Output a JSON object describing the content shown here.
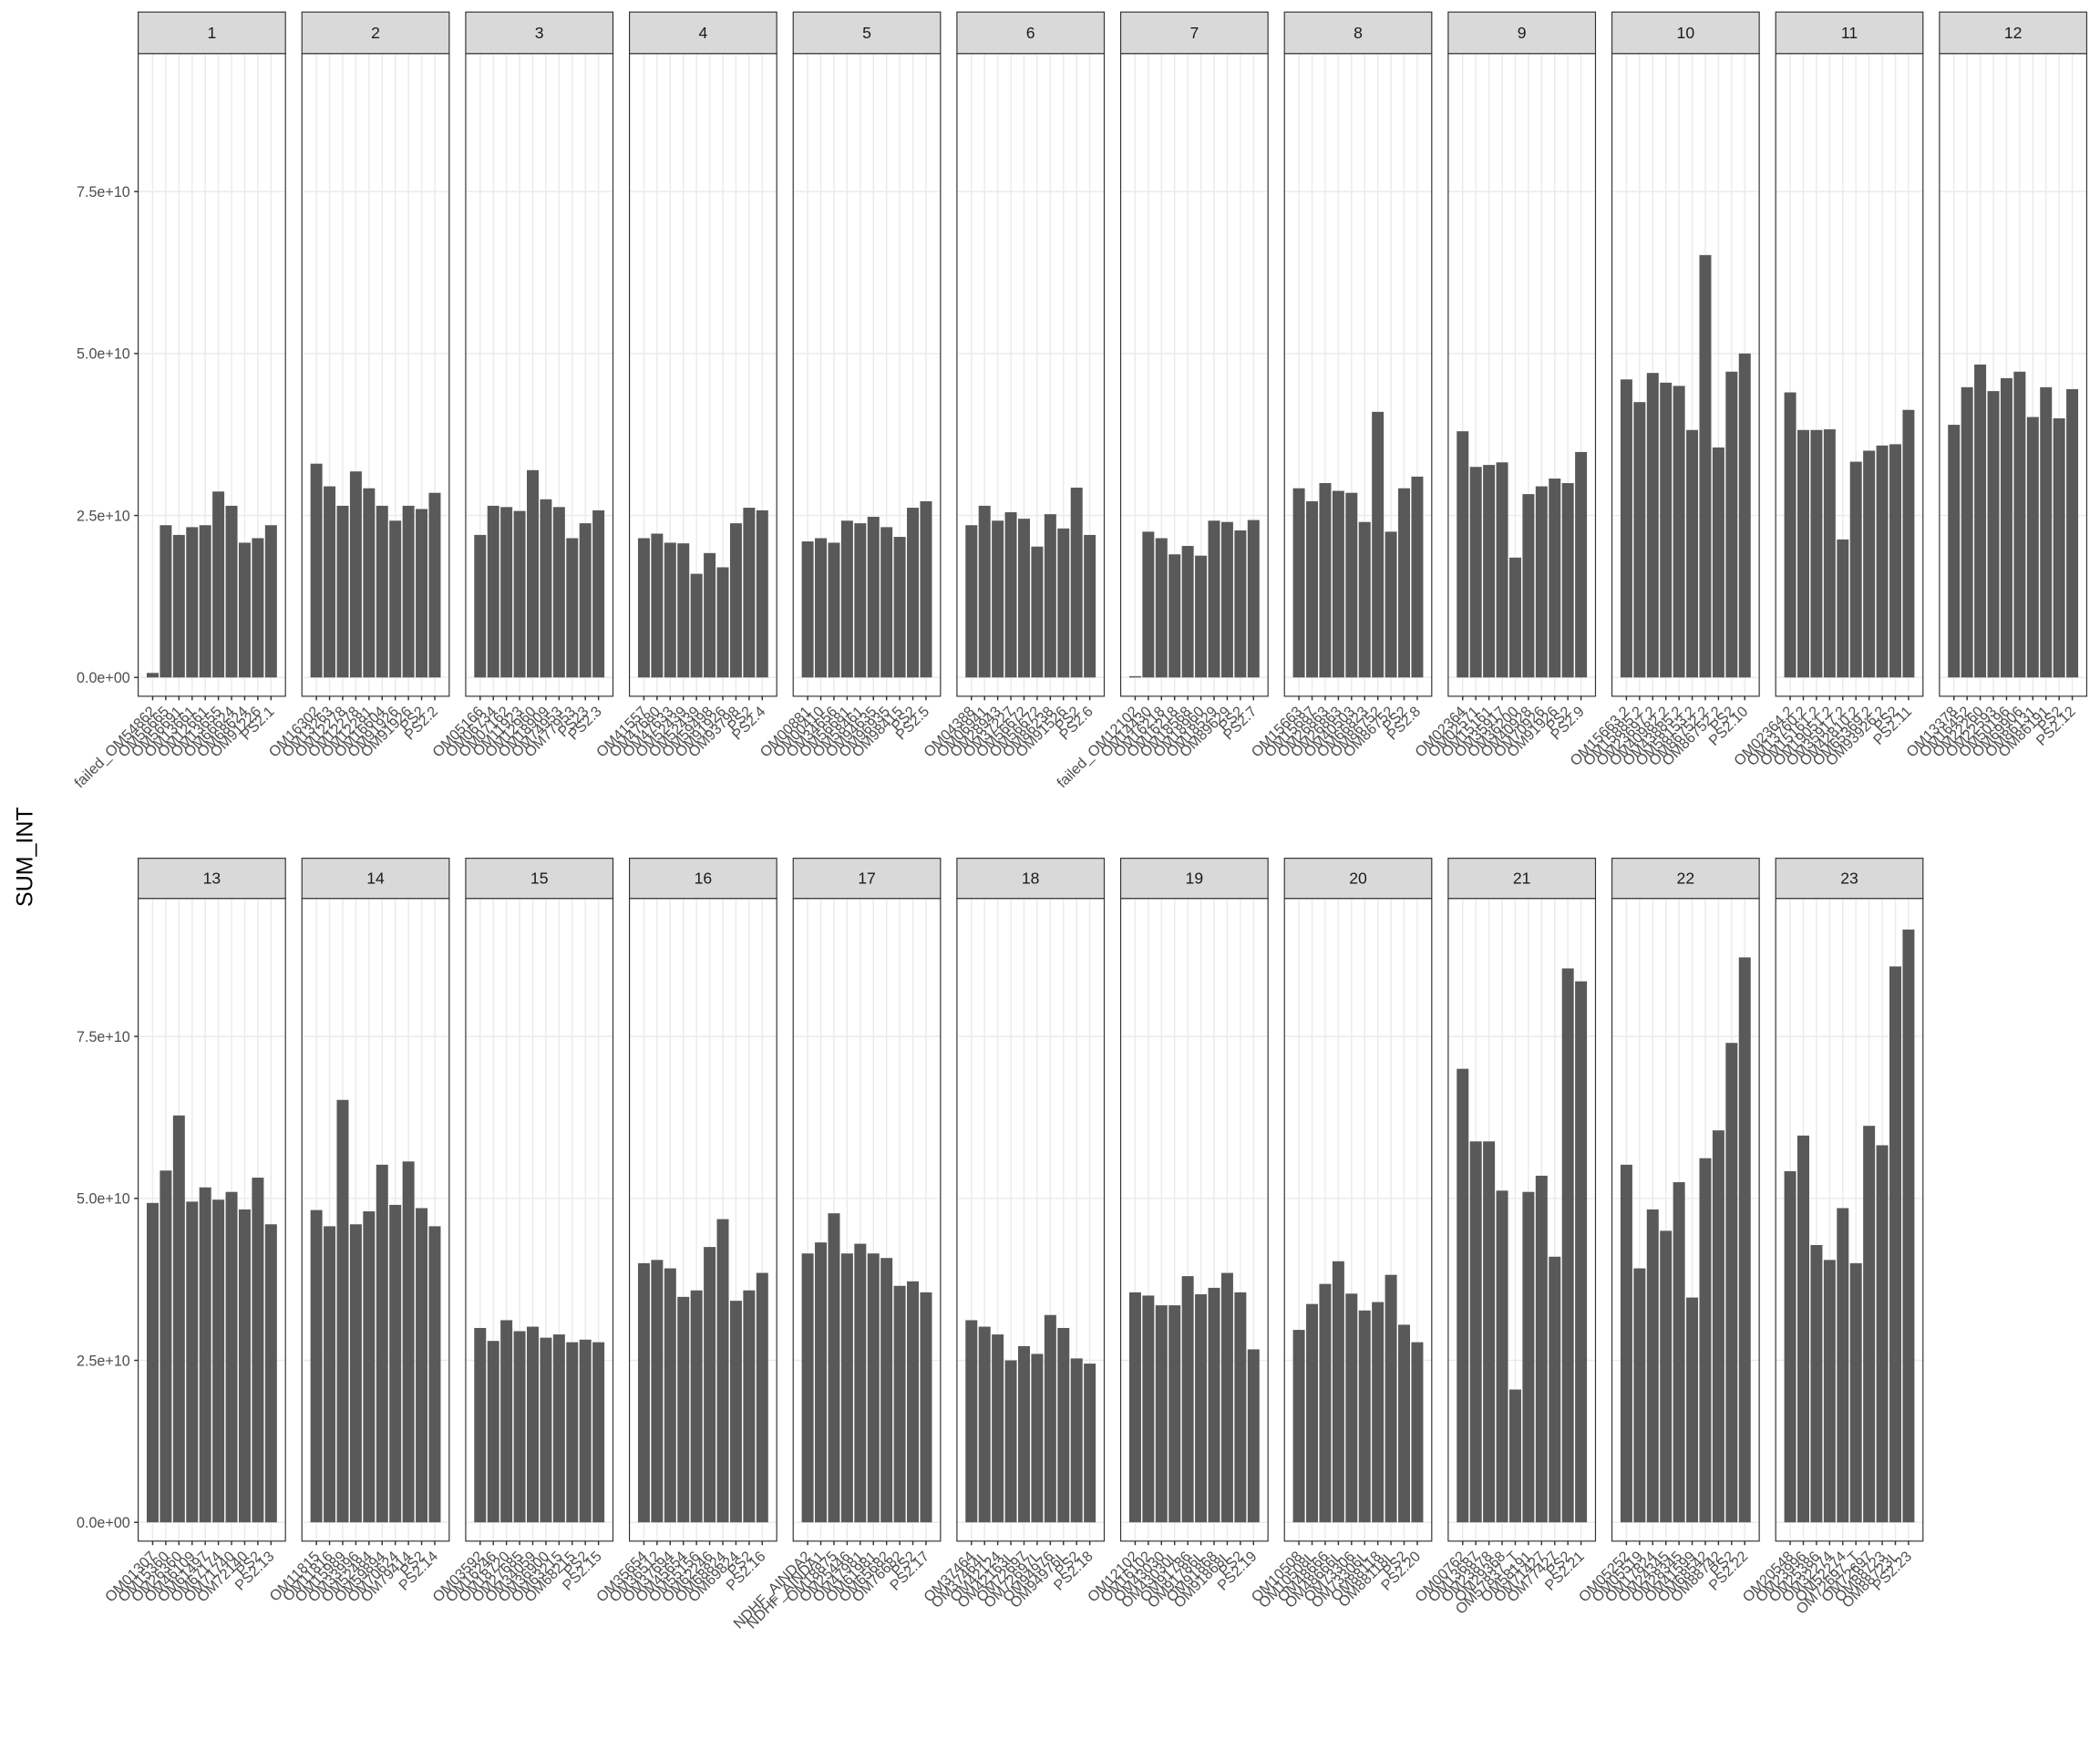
{
  "chart_data": {
    "type": "bar",
    "y_label": "SUM_INT",
    "color": "#595959",
    "grid": true,
    "ylim": [
      -2900000000,
      96300000000
    ],
    "yticks": [
      {
        "value": 0,
        "label": "0.0e+00"
      },
      {
        "value": 25000000000,
        "label": "2.5e+10"
      },
      {
        "value": 50000000000,
        "label": "5.0e+10"
      },
      {
        "value": 75000000000,
        "label": "7.5e+10"
      }
    ],
    "panels": [
      {
        "title": "1",
        "categories": [
          "failed_OM54862",
          "OM56665",
          "OM56691",
          "OM13661",
          "OM12661",
          "OM13655",
          "OM66624",
          "OM68624",
          "OM91226",
          "PS2.1"
        ],
        "values": [
          700000000,
          23500000000,
          22000000000,
          23200000000,
          23500000000,
          28700000000,
          26500000000,
          20800000000,
          21500000000,
          23500000000
        ]
      },
      {
        "title": "2",
        "categories": [
          "OM16302",
          "OM13263",
          "OM12278",
          "OM12278",
          "OM12281",
          "OM16604",
          "OM91926",
          "OM91926",
          "PS2",
          "PS2.2"
        ],
        "values": [
          33000000000,
          29500000000,
          26500000000,
          31800000000,
          29200000000,
          26500000000,
          24200000000,
          26500000000,
          26000000000,
          28500000000
        ]
      },
      {
        "title": "3",
        "categories": [
          "OM05166",
          "OM06734",
          "OM07162",
          "OM11923",
          "OM12960",
          "OM18909",
          "OM74953",
          "OM77953",
          "PS23",
          "PS2.3"
        ],
        "values": [
          22000000000,
          26500000000,
          26300000000,
          25700000000,
          32000000000,
          27500000000,
          26300000000,
          21500000000,
          23800000000,
          25800000000
        ]
      },
      {
        "title": "4",
        "categories": [
          "OM41557",
          "OM47680",
          "OM47633",
          "OM52439",
          "OM52439",
          "OM59498",
          "OM91926",
          "OM93798",
          "PS2",
          "PS2.4"
        ],
        "values": [
          21500000000,
          22200000000,
          20800000000,
          20700000000,
          16000000000,
          19200000000,
          17000000000,
          23800000000,
          26200000000,
          25800000000
        ]
      },
      {
        "title": "5",
        "categories": [
          "OM00881",
          "OM00410",
          "OM34656",
          "OM56681",
          "OM58461",
          "OM94635",
          "OM96935",
          "OM98415",
          "PS2",
          "PS2.5"
        ],
        "values": [
          21000000000,
          21500000000,
          20800000000,
          24200000000,
          23800000000,
          24800000000,
          23200000000,
          21700000000,
          26200000000,
          27200000000
        ]
      },
      {
        "title": "6",
        "categories": [
          "OM04388",
          "OM06941",
          "OM28943",
          "OM37227",
          "OM56672",
          "OM56672",
          "OM86238",
          "OM91526",
          "PS2",
          "PS2.6"
        ],
        "values": [
          23500000000,
          26500000000,
          24200000000,
          25500000000,
          24500000000,
          20200000000,
          25200000000,
          23000000000,
          29300000000,
          22000000000
        ]
      },
      {
        "title": "7",
        "categories": [
          "failed_OM12102",
          "OM14430",
          "OM16218",
          "OM16218",
          "OM18568",
          "OM18960",
          "OM18529",
          "OM89629",
          "PS2",
          "PS2.7"
        ],
        "values": [
          200000000,
          22500000000,
          21500000000,
          19000000000,
          20300000000,
          18800000000,
          24200000000,
          24000000000,
          22700000000,
          24300000000
        ]
      },
      {
        "title": "8",
        "categories": [
          "OM15663",
          "OM15687",
          "OM26863",
          "OM26863",
          "OM40503",
          "OM66823",
          "OM86752",
          "OM86752",
          "PS2",
          "PS2.8"
        ],
        "values": [
          29200000000,
          27200000000,
          30000000000,
          28800000000,
          28500000000,
          24000000000,
          41000000000,
          22500000000,
          29200000000,
          31000000000
        ]
      },
      {
        "title": "9",
        "categories": [
          "OM02364",
          "OM02571",
          "OM15161",
          "OM35917",
          "OM36200",
          "OM40928",
          "OM70926",
          "OM91926",
          "PS2",
          "PS2.9"
        ],
        "values": [
          38000000000,
          32500000000,
          32800000000,
          33200000000,
          18500000000,
          28300000000,
          29500000000,
          30700000000,
          30000000000,
          34800000000
        ]
      },
      {
        "title": "10",
        "categories": [
          "OM15663.2",
          "OM15885.2",
          "OM23697.2",
          "OM40982.2",
          "OM43885.2",
          "OM58153.2",
          "OM86752.2",
          "OM86752.2",
          "PS2",
          "PS2.10"
        ],
        "values": [
          46000000000,
          42500000000,
          47000000000,
          45500000000,
          45000000000,
          38200000000,
          65200000000,
          35500000000,
          47200000000,
          50000000000
        ]
      },
      {
        "title": "11",
        "categories": [
          "OM02364.2",
          "OM13760.2",
          "OM15161.2",
          "OM19051.2",
          "OM35917.2",
          "OM42810.2",
          "OM65369.2",
          "OM93926.2",
          "PS2",
          "PS2.11"
        ],
        "values": [
          44000000000,
          38200000000,
          38200000000,
          38300000000,
          21300000000,
          33300000000,
          35000000000,
          35800000000,
          36000000000,
          41300000000
        ]
      },
      {
        "title": "12",
        "categories": [
          "OM13378",
          "OM16452",
          "OM22260",
          "OM22593",
          "OM50196",
          "OM69906",
          "OM86131",
          "OM86191",
          "PS2",
          "PS2.12"
        ],
        "values": [
          39000000000,
          44800000000,
          48300000000,
          44200000000,
          46200000000,
          47200000000,
          40200000000,
          44800000000,
          40000000000,
          44500000000
        ]
      },
      {
        "title": "13",
        "categories": [
          "OM01307",
          "OM15360",
          "OM26360",
          "OM46109",
          "OM61497",
          "OM67174",
          "OM71740",
          "OM72140",
          "PS2",
          "PS2.13"
        ],
        "values": [
          49300000000,
          54300000000,
          62800000000,
          49500000000,
          51700000000,
          49800000000,
          51000000000,
          48300000000,
          53200000000,
          46000000000
        ]
      },
      {
        "title": "14",
        "categories": [
          "OM11815",
          "OM11816",
          "OM15989",
          "OM33996",
          "OM52484",
          "OM59894",
          "OM70624",
          "OM79414",
          "PS2",
          "PS2.14"
        ],
        "values": [
          48200000000,
          45700000000,
          65200000000,
          46000000000,
          48000000000,
          55200000000,
          49000000000,
          55700000000,
          48500000000,
          45700000000
        ]
      },
      {
        "title": "15",
        "categories": [
          "OM03592",
          "OM16246",
          "OM18720",
          "OM27685",
          "OM34059",
          "OM36900",
          "OM63215",
          "OM68215",
          "PS2",
          "PS2.15"
        ],
        "values": [
          30000000000,
          28000000000,
          31200000000,
          29500000000,
          30200000000,
          28500000000,
          29000000000,
          27800000000,
          28200000000,
          27800000000
        ]
      },
      {
        "title": "16",
        "categories": [
          "OM35654",
          "OM36512",
          "OM37694",
          "OM45654",
          "OM55156",
          "OM62246",
          "OM68824",
          "OM69824",
          "PS2",
          "PS2.16"
        ],
        "values": [
          40000000000,
          40500000000,
          39200000000,
          34800000000,
          35800000000,
          42500000000,
          46800000000,
          34200000000,
          35800000000,
          38500000000
        ]
      },
      {
        "title": "17",
        "categories": [
          "NDHF_AINDA2",
          "NDHF_AINDA1",
          "OM18875",
          "OM25446",
          "OM47981",
          "OM61981",
          "OM65682",
          "OM76682",
          "PS2",
          "PS2.17"
        ],
        "values": [
          41500000000,
          43200000000,
          47700000000,
          41500000000,
          43000000000,
          41500000000,
          40800000000,
          36500000000,
          37200000000,
          35500000000
        ]
      },
      {
        "title": "18",
        "categories": [
          "OM37464",
          "OM37464L",
          "OM42124",
          "OM42163L",
          "OM72697",
          "OM72697L",
          "OM94976",
          "OM94976L",
          "PS2",
          "PS2.18"
        ],
        "values": [
          31200000000,
          30200000000,
          29000000000,
          25000000000,
          27200000000,
          26000000000,
          32000000000,
          30000000000,
          25300000000,
          24500000000
        ]
      },
      {
        "title": "19",
        "categories": [
          "OM12102",
          "OM16102",
          "OM43030",
          "OM43030L",
          "OM91786",
          "OM91786L",
          "OM91868",
          "OM91868L",
          "PS2",
          "PS2.19"
        ],
        "values": [
          35500000000,
          35000000000,
          33500000000,
          33500000000,
          38000000000,
          35200000000,
          36200000000,
          38500000000,
          35500000000,
          26700000000
        ]
      },
      {
        "title": "20",
        "categories": [
          "OM10508",
          "OM10508L",
          "OM48666",
          "OM48666L",
          "OM73306",
          "OM73306L",
          "OM88118",
          "OM88118L",
          "PS2",
          "PS2.20"
        ],
        "values": [
          29700000000,
          33700000000,
          36800000000,
          40300000000,
          35300000000,
          32700000000,
          34000000000,
          38200000000,
          30500000000,
          27800000000
        ]
      },
      {
        "title": "21",
        "categories": [
          "OM00762",
          "OM13687",
          "OM23878",
          "OM29368",
          "OM57837_T",
          "OM58191",
          "OM71427",
          "OM77427",
          "PS2",
          "PS2.21"
        ],
        "values": [
          70000000000,
          58800000000,
          58800000000,
          51200000000,
          20500000000,
          51000000000,
          53500000000,
          41000000000,
          85500000000,
          83500000000
        ]
      },
      {
        "title": "22",
        "categories": [
          "OM05252",
          "OM05519",
          "OM17824",
          "OM24345",
          "OM28345",
          "OM41599",
          "OM68542",
          "OM88742",
          "PS2",
          "PS2.22"
        ],
        "values": [
          55200000000,
          39200000000,
          48300000000,
          45000000000,
          52500000000,
          34700000000,
          56200000000,
          60500000000,
          74000000000,
          87200000000
        ]
      },
      {
        "title": "23",
        "categories": [
          "OM20548",
          "OM23996",
          "OM25386",
          "OM32274",
          "OM52274",
          "OM72697_T",
          "OM72697",
          "OM88723",
          "OM88723L",
          "PS2.23"
        ],
        "values": [
          54200000000,
          59700000000,
          42800000000,
          40500000000,
          48500000000,
          40000000000,
          61200000000,
          58200000000,
          85800000000,
          91500000000
        ]
      }
    ]
  }
}
